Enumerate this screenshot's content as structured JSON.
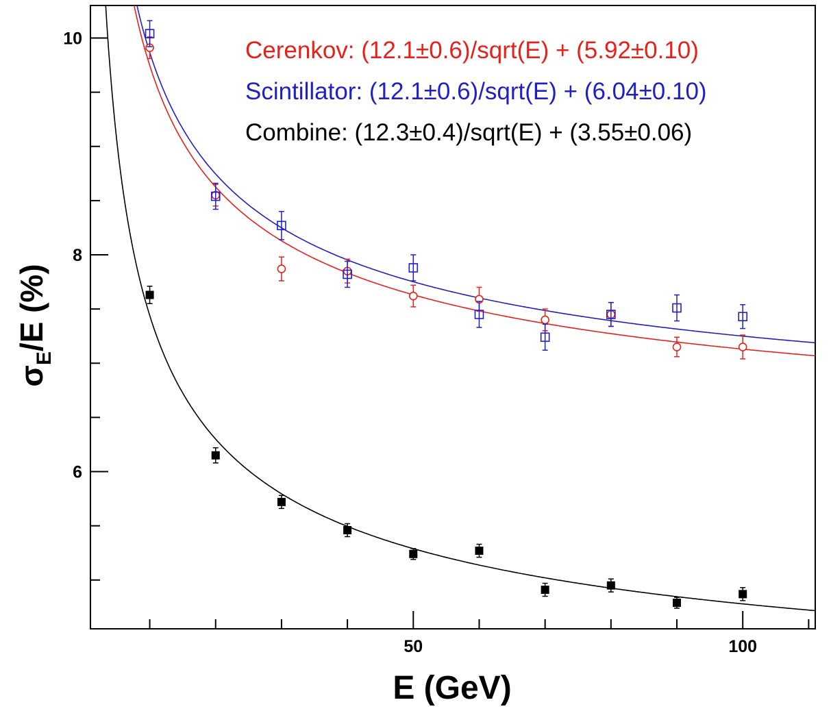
{
  "chart_data": {
    "type": "scatter",
    "xlabel": "E (GeV)",
    "ylabel_main": "σ",
    "ylabel_sub": "E",
    "ylabel_rest": "/E (%)",
    "xlim": [
      1,
      111
    ],
    "ylim": [
      4.55,
      10.3
    ],
    "log_x": false,
    "grid": false,
    "x_ticks": [
      50,
      100
    ],
    "x_tick_labels": [
      "50",
      "100"
    ],
    "y_ticks": [
      6,
      8,
      10
    ],
    "y_tick_labels": [
      "6",
      "8",
      "10"
    ],
    "y_minor_ticks": [
      5.0,
      5.5,
      6.5,
      7.0,
      7.5,
      8.5,
      9.0,
      9.5
    ],
    "x_minor_ticks": [
      10,
      20,
      30,
      40,
      60,
      70,
      80,
      90,
      110
    ],
    "annotations": [
      {
        "text": "Cerenkov: (12.1±0.6)/sqrt(E) + (5.92±0.10)",
        "color": "#e8201a"
      },
      {
        "text": "Scintillator: (12.1±0.6)/sqrt(E) + (6.04±0.10)",
        "color": "#1f1fc8"
      },
      {
        "text": "Combine: (12.3±0.4)/sqrt(E) + (3.55±0.06)",
        "color": "#000000"
      }
    ],
    "series": [
      {
        "name": "Cerenkov",
        "color": "#e8201a",
        "marker": "open-circle",
        "x": [
          10,
          20,
          30,
          40,
          50,
          60,
          70,
          80,
          90,
          100
        ],
        "y": [
          9.91,
          8.55,
          7.87,
          7.85,
          7.62,
          7.59,
          7.4,
          7.45,
          7.15,
          7.15
        ],
        "yerr": [
          0.1,
          0.1,
          0.11,
          0.11,
          0.1,
          0.11,
          0.1,
          0.11,
          0.09,
          0.11
        ],
        "fit": {
          "a": 12.1,
          "b": 5.92
        }
      },
      {
        "name": "Scintillator",
        "color": "#1f1fc8",
        "marker": "open-square",
        "x": [
          10,
          20,
          30,
          40,
          50,
          60,
          70,
          80,
          90,
          100
        ],
        "y": [
          10.04,
          8.54,
          8.27,
          7.82,
          7.88,
          7.45,
          7.24,
          7.45,
          7.51,
          7.43
        ],
        "yerr": [
          0.12,
          0.12,
          0.13,
          0.12,
          0.12,
          0.12,
          0.12,
          0.11,
          0.12,
          0.11
        ],
        "fit": {
          "a": 12.1,
          "b": 6.04
        }
      },
      {
        "name": "Combine",
        "color": "#000000",
        "marker": "filled-square",
        "x": [
          10,
          20,
          30,
          40,
          50,
          60,
          70,
          80,
          90,
          100
        ],
        "y": [
          7.63,
          6.15,
          5.72,
          5.46,
          5.24,
          5.27,
          4.91,
          4.95,
          4.79,
          4.87
        ],
        "yerr": [
          0.08,
          0.07,
          0.06,
          0.06,
          0.05,
          0.06,
          0.06,
          0.06,
          0.05,
          0.06
        ],
        "fit": {
          "a": 12.3,
          "b": 3.55
        }
      }
    ]
  }
}
